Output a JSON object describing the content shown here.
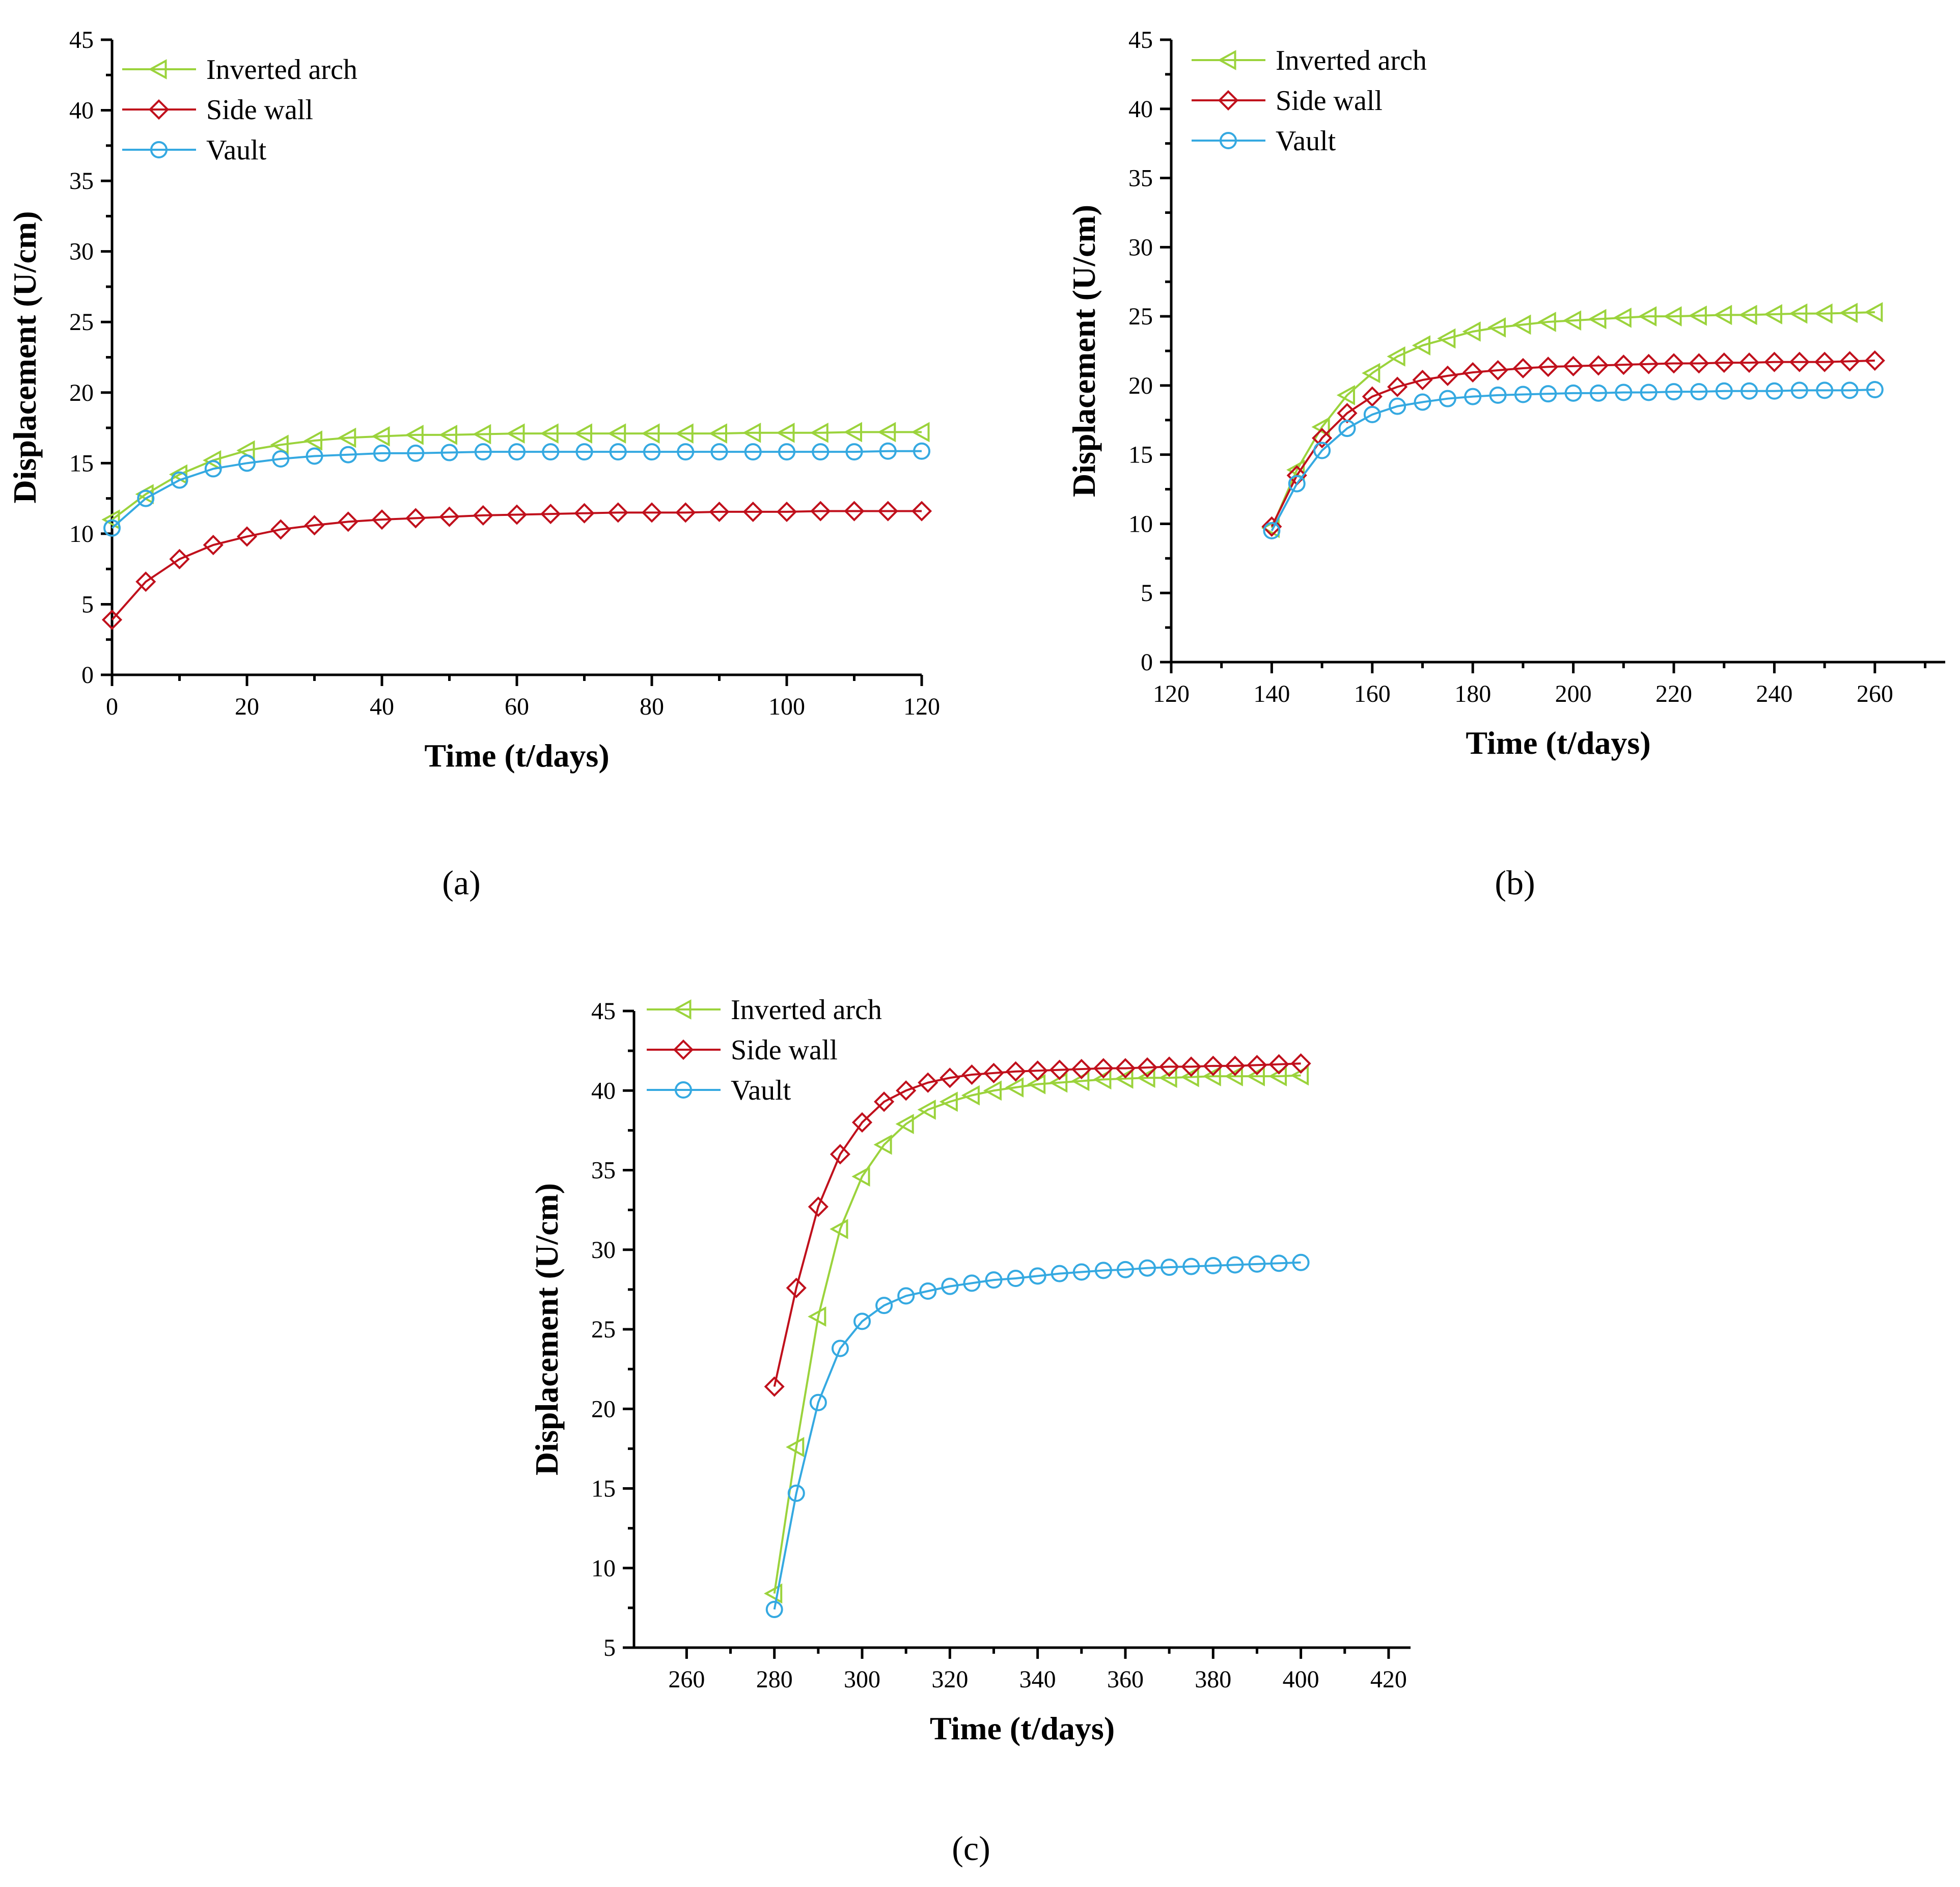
{
  "figure_labels": [
    "(a)",
    "(b)",
    "(c)"
  ],
  "colors": {
    "inverted_arch": "#9bd33c",
    "side_wall": "#c0101c",
    "vault": "#35a9e1"
  },
  "chart_data": [
    {
      "id": "a",
      "type": "line",
      "panel_label": "(a)",
      "xlabel": "Time (t/days)",
      "ylabel": "Displacement (U/cm)",
      "xlim": [
        0,
        120
      ],
      "ylim": [
        0,
        45
      ],
      "xticks": [
        0,
        20,
        40,
        60,
        80,
        100,
        120
      ],
      "yticks": [
        0,
        5,
        10,
        15,
        20,
        25,
        30,
        35,
        40,
        45
      ],
      "legend_position": "top-left",
      "x": [
        0,
        5,
        10,
        15,
        20,
        25,
        30,
        35,
        40,
        45,
        50,
        55,
        60,
        65,
        70,
        75,
        80,
        85,
        90,
        95,
        100,
        105,
        110,
        115,
        120
      ],
      "series": [
        {
          "name": "Inverted arch",
          "marker": "triangle-left",
          "color_key": "inverted_arch",
          "values": [
            11.0,
            12.8,
            14.2,
            15.2,
            15.9,
            16.3,
            16.6,
            16.8,
            16.9,
            17.0,
            17.0,
            17.05,
            17.1,
            17.1,
            17.1,
            17.1,
            17.1,
            17.1,
            17.1,
            17.15,
            17.15,
            17.15,
            17.2,
            17.2,
            17.2
          ]
        },
        {
          "name": "Side wall",
          "marker": "diamond",
          "color_key": "side_wall",
          "values": [
            3.9,
            6.6,
            8.2,
            9.2,
            9.8,
            10.3,
            10.6,
            10.85,
            11.0,
            11.1,
            11.2,
            11.3,
            11.35,
            11.4,
            11.45,
            11.5,
            11.5,
            11.5,
            11.55,
            11.55,
            11.55,
            11.6,
            11.6,
            11.6,
            11.6
          ]
        },
        {
          "name": "Vault",
          "marker": "circle",
          "color_key": "vault",
          "values": [
            10.4,
            12.5,
            13.8,
            14.6,
            15.0,
            15.3,
            15.5,
            15.6,
            15.7,
            15.7,
            15.75,
            15.8,
            15.8,
            15.8,
            15.8,
            15.8,
            15.8,
            15.8,
            15.8,
            15.8,
            15.8,
            15.8,
            15.8,
            15.85,
            15.85
          ]
        }
      ]
    },
    {
      "id": "b",
      "type": "line",
      "panel_label": "(b)",
      "xlabel": "Time (t/days)",
      "ylabel": "Displacement (U/cm)",
      "xlim": [
        120,
        274
      ],
      "ylim": [
        0,
        45
      ],
      "xticks": [
        120,
        140,
        160,
        180,
        200,
        220,
        240,
        260
      ],
      "yticks": [
        0,
        5,
        10,
        15,
        20,
        25,
        30,
        35,
        40,
        45
      ],
      "legend_position": "top-left",
      "x": [
        140,
        145,
        150,
        155,
        160,
        165,
        170,
        175,
        180,
        185,
        190,
        195,
        200,
        205,
        210,
        215,
        220,
        225,
        230,
        235,
        240,
        245,
        250,
        255,
        260
      ],
      "series": [
        {
          "name": "Inverted arch",
          "marker": "triangle-left",
          "color_key": "inverted_arch",
          "values": [
            9.7,
            13.9,
            17.0,
            19.3,
            20.9,
            22.1,
            22.9,
            23.4,
            23.9,
            24.2,
            24.4,
            24.6,
            24.7,
            24.8,
            24.9,
            25.0,
            25.0,
            25.05,
            25.1,
            25.1,
            25.15,
            25.2,
            25.2,
            25.25,
            25.3
          ]
        },
        {
          "name": "Side wall",
          "marker": "diamond",
          "color_key": "side_wall",
          "values": [
            9.8,
            13.5,
            16.2,
            18.0,
            19.2,
            19.9,
            20.4,
            20.7,
            20.95,
            21.1,
            21.25,
            21.35,
            21.4,
            21.45,
            21.5,
            21.55,
            21.6,
            21.6,
            21.65,
            21.65,
            21.7,
            21.7,
            21.7,
            21.75,
            21.8
          ]
        },
        {
          "name": "Vault",
          "marker": "circle",
          "color_key": "vault",
          "values": [
            9.5,
            12.9,
            15.3,
            16.9,
            17.9,
            18.5,
            18.8,
            19.05,
            19.2,
            19.3,
            19.35,
            19.4,
            19.45,
            19.45,
            19.5,
            19.5,
            19.55,
            19.55,
            19.6,
            19.6,
            19.6,
            19.65,
            19.65,
            19.65,
            19.7
          ]
        }
      ]
    },
    {
      "id": "c",
      "type": "line",
      "panel_label": "(c)",
      "xlabel": "Time (t/days)",
      "ylabel": "Displacement (U/cm)",
      "xlim": [
        248,
        425
      ],
      "ylim": [
        5,
        45
      ],
      "xticks": [
        260,
        280,
        300,
        320,
        340,
        360,
        380,
        400,
        420
      ],
      "yticks": [
        5,
        10,
        15,
        20,
        25,
        30,
        35,
        40,
        45
      ],
      "legend_position": "top-left",
      "x": [
        280,
        285,
        290,
        295,
        300,
        305,
        310,
        315,
        320,
        325,
        330,
        335,
        340,
        345,
        350,
        355,
        360,
        365,
        370,
        375,
        380,
        385,
        390,
        395,
        400
      ],
      "series": [
        {
          "name": "Inverted arch",
          "marker": "triangle-left",
          "color_key": "inverted_arch",
          "values": [
            8.4,
            17.6,
            25.8,
            31.3,
            34.6,
            36.6,
            37.9,
            38.8,
            39.3,
            39.7,
            40.0,
            40.2,
            40.4,
            40.5,
            40.6,
            40.7,
            40.75,
            40.8,
            40.8,
            40.85,
            40.9,
            40.9,
            40.9,
            40.9,
            40.95
          ]
        },
        {
          "name": "Side wall",
          "marker": "diamond",
          "color_key": "side_wall",
          "values": [
            21.4,
            27.6,
            32.7,
            36.0,
            38.0,
            39.3,
            40.0,
            40.5,
            40.8,
            41.0,
            41.1,
            41.2,
            41.25,
            41.3,
            41.35,
            41.4,
            41.4,
            41.45,
            41.5,
            41.5,
            41.55,
            41.55,
            41.6,
            41.65,
            41.7
          ]
        },
        {
          "name": "Vault",
          "marker": "circle",
          "color_key": "vault",
          "values": [
            7.4,
            14.7,
            20.4,
            23.8,
            25.5,
            26.5,
            27.1,
            27.4,
            27.7,
            27.9,
            28.1,
            28.2,
            28.35,
            28.5,
            28.6,
            28.7,
            28.75,
            28.85,
            28.9,
            28.95,
            29.0,
            29.05,
            29.1,
            29.15,
            29.2
          ]
        }
      ]
    }
  ]
}
